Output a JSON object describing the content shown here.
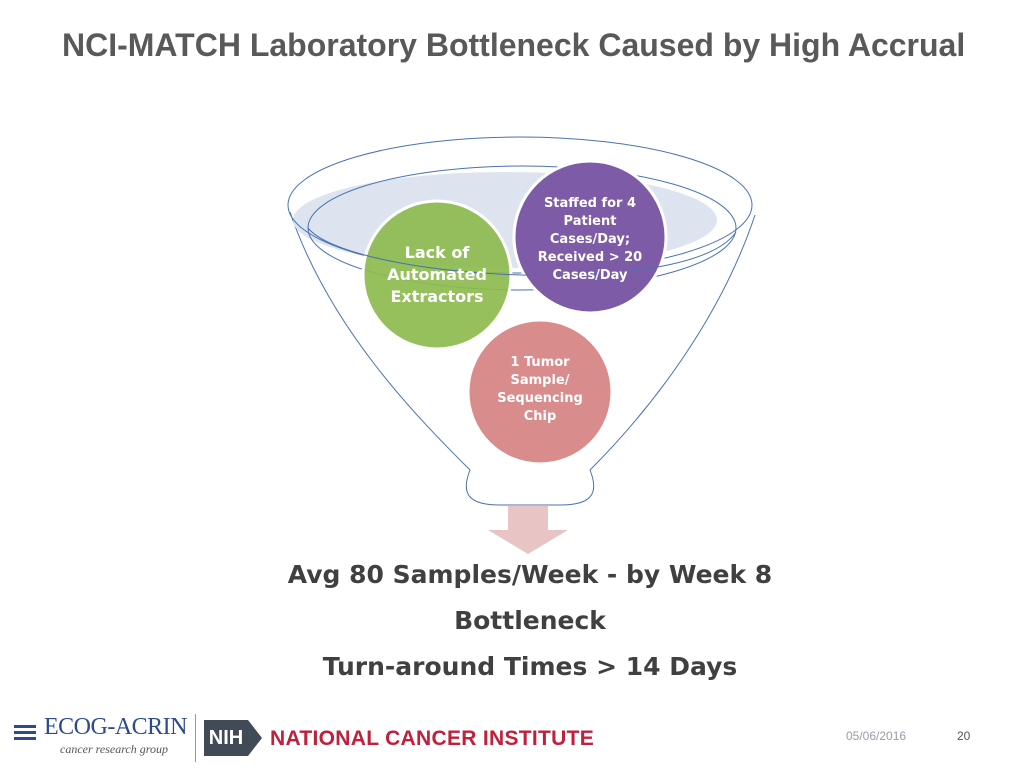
{
  "title": "NCI-MATCH Laboratory Bottleneck Caused by High Accrual",
  "circles": {
    "lack": {
      "label": "Lack of Automated Extractors",
      "color": "#8dbb4e"
    },
    "staffed": {
      "label": "Staffed for  4 Patient Cases/Day; Received > 20 Cases/Day",
      "color": "#7d5ba6"
    },
    "tumor": {
      "label": "1 Tumor Sample/ Sequencing Chip",
      "color": "#d98c8c"
    }
  },
  "outcome": {
    "line1": "Avg 80 Samples/Week - by Week 8",
    "line2": "Bottleneck",
    "line3": "Turn-around Times > 14 Days"
  },
  "footer": {
    "date": "05/06/2016",
    "page": "20",
    "ecog_name": "ECOG-ACRIN",
    "ecog_sub": "cancer research group",
    "nih": "NIH",
    "nci": "NATIONAL CANCER INSTITUTE"
  },
  "colors": {
    "funnel_stroke": "#4a72b0",
    "funnel_rim_fill": "#dde4f0",
    "arrow": "#e8c4c4",
    "ecog_blue": "#2e4a8f",
    "nci_red": "#c0203c"
  }
}
